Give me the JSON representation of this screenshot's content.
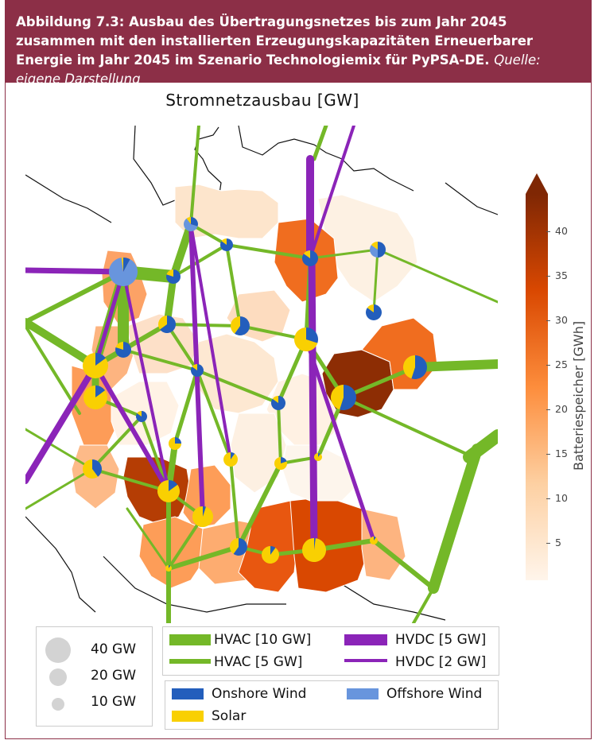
{
  "header": {
    "title": "Abbildung 7.3: Ausbau des Übertragungsnetzes bis zum Jahr 2045 zusammen mit den installierten Erzeugungskapazitäten Erneuerbarer Energie im Jahr 2045 im Szenario Technologiemix für PyPSA-DE.",
    "source": "Quelle: eigene Darstellung"
  },
  "map": {
    "title": "Stromnetzausbau [GW]"
  },
  "colorbar": {
    "label": "Batteriespeicher [GWh]",
    "ticks": [
      "40",
      "35",
      "30",
      "25",
      "20",
      "15",
      "10",
      "5"
    ],
    "colors": [
      "#fff5eb",
      "#fdd0a2",
      "#fd8d3c",
      "#d94801",
      "#7f2704"
    ]
  },
  "legend_sizes": [
    {
      "label": "40 GW"
    },
    {
      "label": "20 GW"
    },
    {
      "label": "10 GW"
    }
  ],
  "legend_lines": {
    "hvac_10": "HVAC [10 GW]",
    "hvac_5": "HVAC [5 GW]",
    "hvdc_5": "HVDC [5 GW]",
    "hvdc_2": "HVDC [2 GW]"
  },
  "legend_tech": {
    "onshore": "Onshore Wind",
    "offshore": "Offshore Wind",
    "solar": "Solar"
  },
  "colors": {
    "hvac": "#74b828",
    "hvdc": "#8b24b8",
    "onshore": "#235ebc",
    "offshore": "#6895dd",
    "solar": "#f9d002",
    "header": "#8c2f47"
  }
}
